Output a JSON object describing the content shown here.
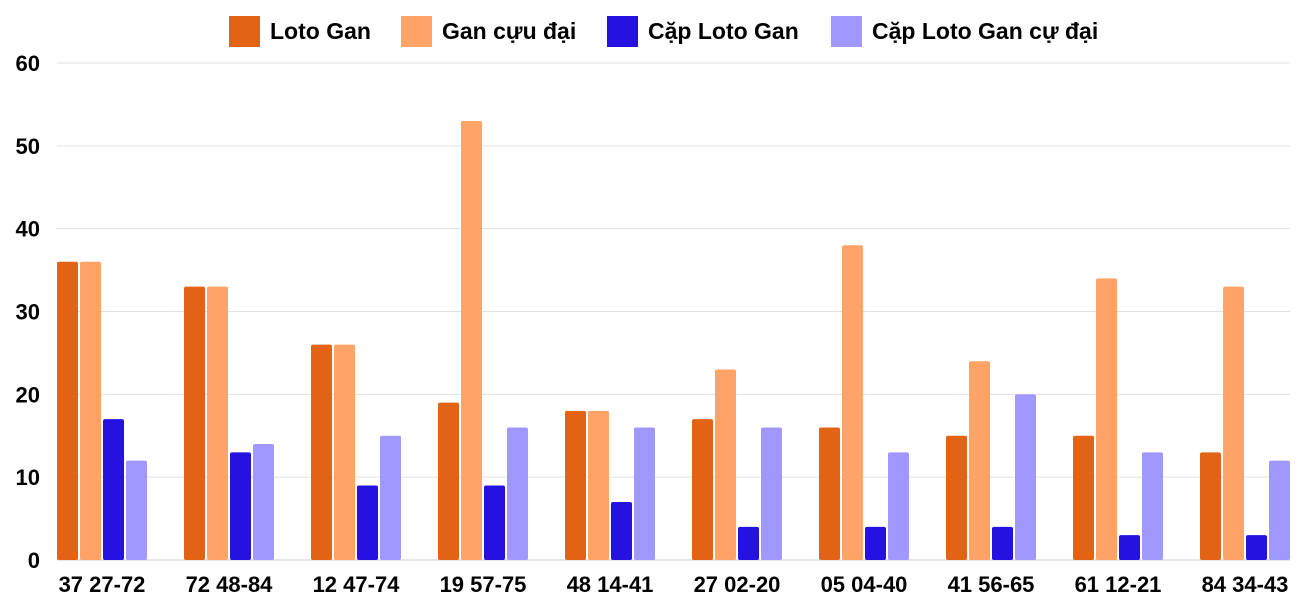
{
  "chart_data": {
    "type": "bar",
    "title": "",
    "xlabel": "",
    "ylabel": "",
    "ylim": [
      0,
      60
    ],
    "yticks": [
      0,
      10,
      20,
      30,
      40,
      50,
      60
    ],
    "grid": true,
    "legend_position": "top",
    "categories": [
      "37 27-72",
      "72 48-84",
      "12 47-74",
      "19 57-75",
      "48 14-41",
      "27 02-20",
      "05 04-40",
      "41 56-65",
      "61 12-21",
      "84 34-43"
    ],
    "series": [
      {
        "name": "Loto Gan",
        "color": "#e26314",
        "values": [
          36,
          33,
          26,
          19,
          18,
          17,
          16,
          15,
          15,
          13
        ]
      },
      {
        "name": "Gan cựu đại",
        "color": "#ffa366",
        "values": [
          36,
          33,
          26,
          53,
          18,
          23,
          38,
          24,
          34,
          33
        ]
      },
      {
        "name": "Cặp Loto Gan",
        "color": "#2612e0",
        "values": [
          17,
          13,
          9,
          9,
          7,
          4,
          4,
          4,
          3,
          3
        ]
      },
      {
        "name": "Cặp Loto Gan cự đại",
        "color": "#a097ff",
        "values": [
          12,
          14,
          15,
          16,
          16,
          16,
          13,
          20,
          13,
          12
        ]
      }
    ]
  }
}
